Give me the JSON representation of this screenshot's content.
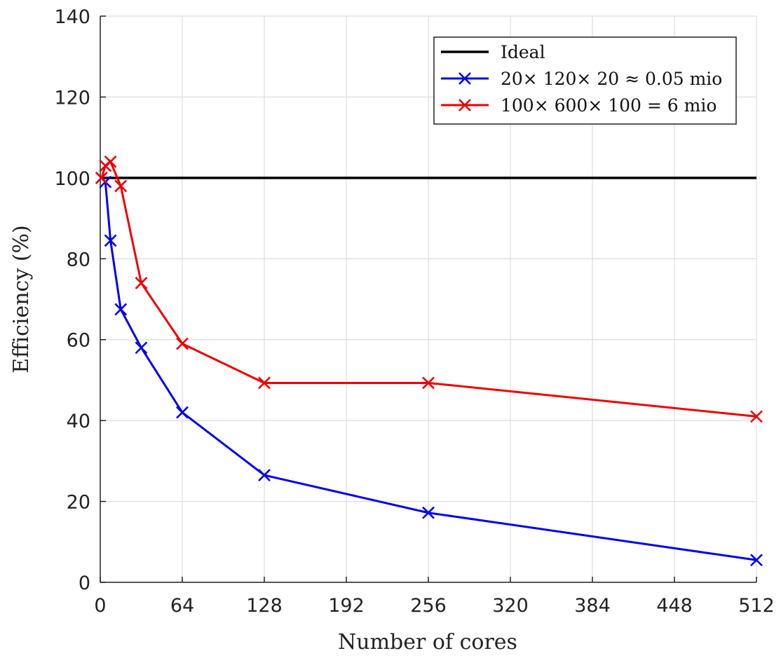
{
  "chart_data": {
    "type": "line",
    "xlabel": "Number of cores",
    "ylabel": "Efficiency (%)",
    "xlim": [
      0,
      512
    ],
    "ylim": [
      0,
      140
    ],
    "xticks": [
      0,
      64,
      128,
      192,
      256,
      320,
      384,
      448,
      512
    ],
    "yticks": [
      0,
      20,
      40,
      60,
      80,
      100,
      120,
      140
    ],
    "grid": true,
    "legend_position": "top-right",
    "series": [
      {
        "name": "Ideal",
        "color": "#000000",
        "marker": "none",
        "x": [
          0,
          512
        ],
        "y": [
          100,
          100
        ]
      },
      {
        "name": "20× 120× 20 ≈ 0.05 mio",
        "color": "#0000ee",
        "marker": "x",
        "x": [
          1,
          4,
          8,
          16,
          32,
          64,
          128,
          256,
          512
        ],
        "y": [
          100,
          99,
          84.5,
          67.5,
          58,
          42,
          26.5,
          17.2,
          5.5
        ]
      },
      {
        "name": "100× 600× 100 = 6 mio",
        "color": "#ee0000",
        "marker": "x",
        "x": [
          1,
          4,
          8,
          16,
          32,
          64,
          128,
          256,
          512
        ],
        "y": [
          100,
          103,
          104,
          98,
          74,
          59,
          49.3,
          49.3,
          41
        ]
      }
    ]
  }
}
